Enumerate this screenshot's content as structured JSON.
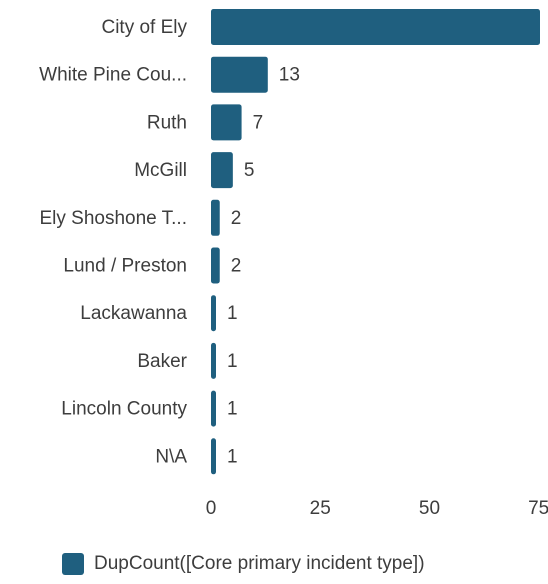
{
  "chart_data": {
    "type": "bar",
    "orientation": "horizontal",
    "categories": [
      "City of Ely",
      "White Pine Cou...",
      "Ruth",
      "McGill",
      "Ely Shoshone T...",
      "Lund / Preston",
      "Lackawanna",
      "Baker",
      "Lincoln County",
      "N\\A"
    ],
    "series": [
      {
        "name": "DupCount([Core primary incident type])",
        "values": [
          76,
          13,
          7,
          5,
          2,
          2,
          1,
          1,
          1,
          1
        ]
      }
    ],
    "value_labels": [
      "",
      "13",
      "7",
      "5",
      "2",
      "2",
      "1",
      "1",
      "1",
      "1"
    ],
    "x_ticks": [
      "0",
      "25",
      "50",
      "75"
    ],
    "xlim": [
      0,
      75
    ],
    "grid": false,
    "legend_position": "bottom",
    "colors": {
      "bar": "#1f5f7f"
    }
  }
}
